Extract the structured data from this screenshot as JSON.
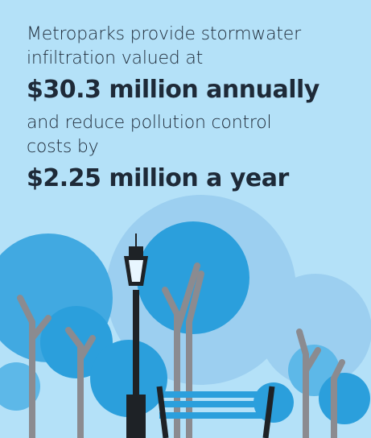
{
  "intro": {
    "lines": [
      "Metroparks provide stormwater",
      "infiltration valued at"
    ]
  },
  "highlight_1": "$30.3 million annually",
  "middle": {
    "lines": [
      "and reduce pollution control",
      "costs by"
    ]
  },
  "highlight_2": "$2.25 million a year"
}
